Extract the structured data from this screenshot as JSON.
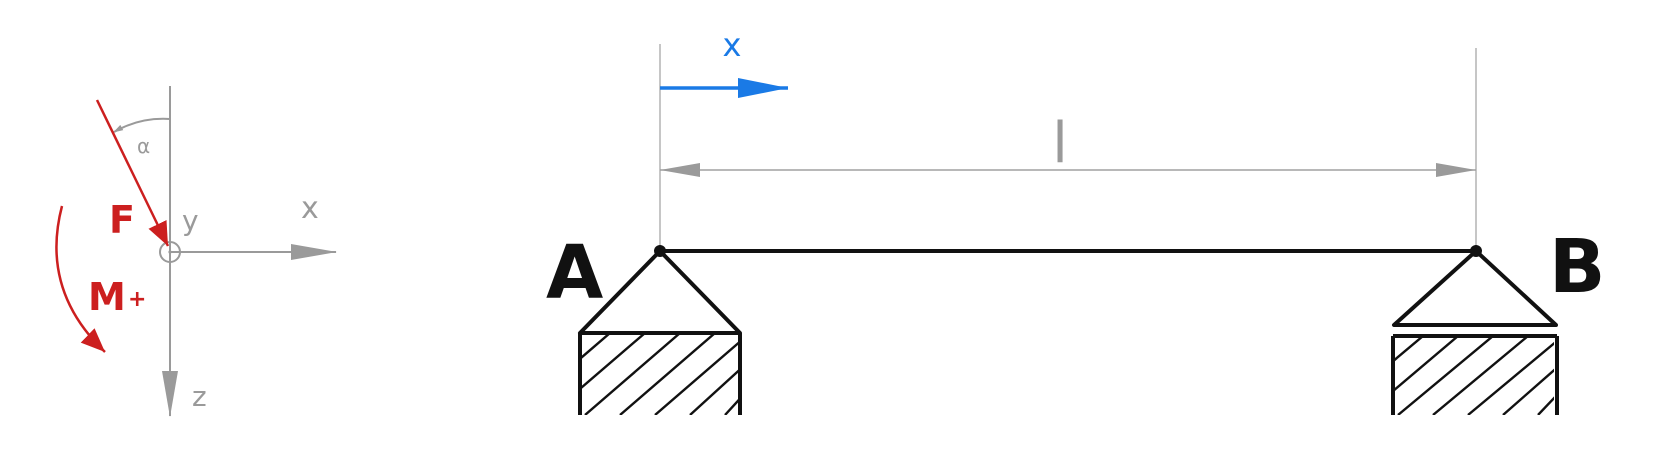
{
  "colors": {
    "background": "#ffffff",
    "structure": "#111111",
    "dimension": "#9a9a9a",
    "force": "#cc1f1f",
    "coordinate": "#1a7ae6"
  },
  "sign_convention": {
    "axis_x_label": "x",
    "axis_y_label": "y",
    "axis_z_label": "z",
    "angle_label": "α",
    "force_label": "F",
    "moment_label": "M",
    "moment_sign": "+"
  },
  "beam": {
    "coordinate_label": "x",
    "span_label": "l",
    "support_left_label": "A",
    "support_right_label": "B"
  }
}
